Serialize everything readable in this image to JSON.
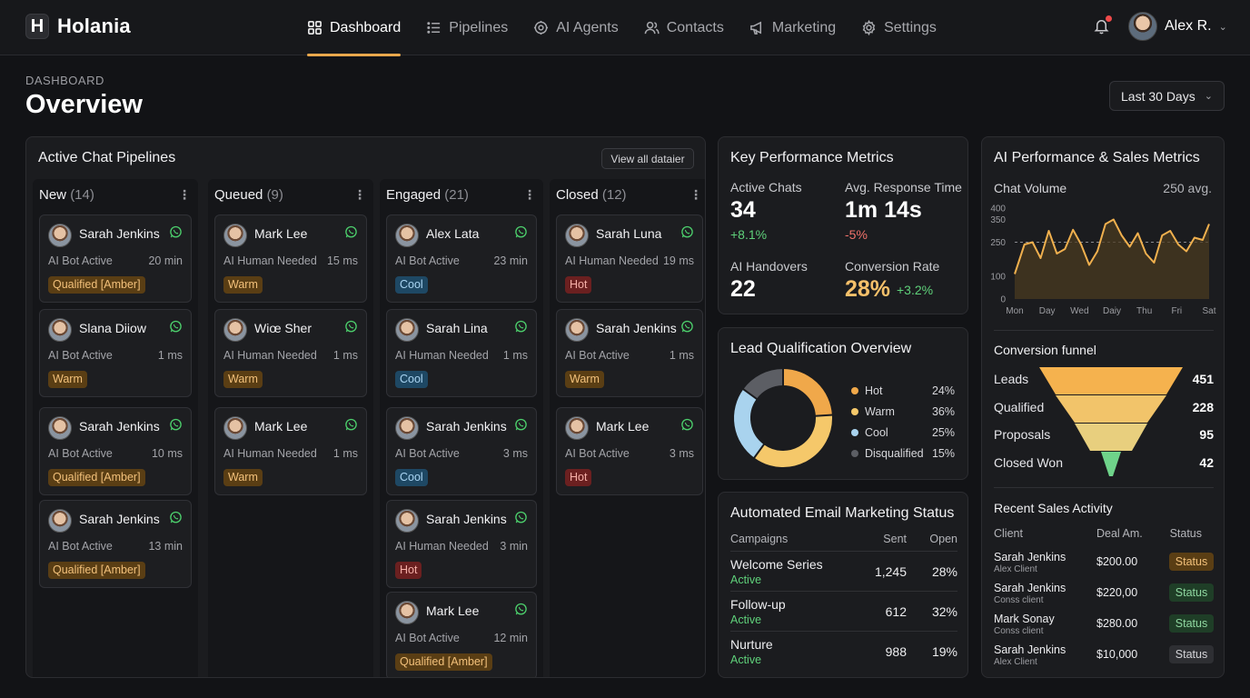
{
  "app": {
    "name": "Holania",
    "logo_letter": "H"
  },
  "nav": [
    {
      "label": "Dashboard",
      "icon": "grid-icon",
      "active": true
    },
    {
      "label": "Pipelines",
      "icon": "list-icon"
    },
    {
      "label": "AI Agents",
      "icon": "bot-icon"
    },
    {
      "label": "Contacts",
      "icon": "users-icon"
    },
    {
      "label": "Marketing",
      "icon": "megaphone-icon"
    },
    {
      "label": "Settings",
      "icon": "gear-icon"
    }
  ],
  "user": {
    "name": "Alex R."
  },
  "page": {
    "breadcrumb": "DASHBOARD",
    "title": "Overview",
    "range": "Last 30 Days"
  },
  "pipelines": {
    "title": "Active Chat Pipelines",
    "view_all": "View all dataier",
    "columns": [
      {
        "name": "New",
        "count": "(14)",
        "cards": [
          {
            "name": "Sarah Jenkins",
            "status": "AI  Bot Active",
            "time": "20 min",
            "tag": "Qualified [Amber]",
            "tag_type": "amber"
          },
          {
            "name": "Slana Diiow",
            "status": "AI  Bot Active",
            "time": "1 ms",
            "tag": "Warm",
            "tag_type": "amber"
          },
          {
            "name": "Sarah Jenkins",
            "status": "AI  Bot Active",
            "time": "10 ms",
            "tag": "Qualified [Amber]",
            "tag_type": "amber"
          },
          {
            "name": "Sarah Jenkins",
            "status": "AI  Bot Active",
            "time": "13 min",
            "tag": "Qualified [Amber]",
            "tag_type": "amber"
          }
        ]
      },
      {
        "name": "Queued",
        "count": "(9)",
        "cards": [
          {
            "name": "Mark Lee",
            "status": "AI  Human Needed",
            "time": "15 ms",
            "tag": "Warm",
            "tag_type": "amber"
          },
          {
            "name": "Wiœ Sher",
            "status": "AI  Human Needed",
            "time": "1 ms",
            "tag": "Warm",
            "tag_type": "amber"
          },
          {
            "name": "Mark Lee",
            "status": "AI  Human Needed",
            "time": "1 ms",
            "tag": "Warm",
            "tag_type": "amber"
          }
        ]
      },
      {
        "name": "Engaged",
        "count": "(21)",
        "cards": [
          {
            "name": "Alex Lata",
            "status": "AI  Bot Active",
            "time": "23 min",
            "tag": "Cool",
            "tag_type": "cool"
          },
          {
            "name": "Sarah Lina",
            "status": "AI  Human Needed",
            "time": "1 ms",
            "tag": "Cool",
            "tag_type": "cool"
          },
          {
            "name": "Sarah Jenkins",
            "status": "AI  Bot Active",
            "time": "3 ms",
            "tag": "Cool",
            "tag_type": "cool"
          },
          {
            "name": "Sarah Jenkins",
            "status": "AI  Human Needed",
            "time": "3 min",
            "tag": "Hot",
            "tag_type": "hot"
          },
          {
            "name": "Mark Lee",
            "status": "AI  Bot Active",
            "time": "12 min",
            "tag": "Qualified [Amber]",
            "tag_type": "amber"
          }
        ]
      },
      {
        "name": "Closed",
        "count": "(12)",
        "cards": [
          {
            "name": "Sarah Luna",
            "status": "AI  Human Needed",
            "time": "19 ms",
            "tag": "Hot",
            "tag_type": "hot"
          },
          {
            "name": "Sarah Jenkins",
            "status": "AI  Bot Active",
            "time": "1 ms",
            "tag": "Warm",
            "tag_type": "amber"
          },
          {
            "name": "Mark Lee",
            "status": "AI  Bot Active",
            "time": "3 ms",
            "tag": "Hot",
            "tag_type": "hot"
          }
        ]
      }
    ]
  },
  "kpi": {
    "title": "Key Performance Metrics",
    "active_chats": {
      "label": "Active Chats",
      "value": "34",
      "delta": "+8.1%"
    },
    "response": {
      "label": "Avg. Response Time",
      "value": "1m 14s",
      "delta": "-5%"
    },
    "handovers": {
      "label": "AI Handovers",
      "value": "22"
    },
    "conversion": {
      "label": "Conversion Rate",
      "value": "28%",
      "delta": "+3.2%"
    }
  },
  "lead": {
    "title": "Lead Qualification Overview",
    "items": [
      {
        "label": "Hot",
        "pct": "24%",
        "value": 24,
        "color": "#f0a84a"
      },
      {
        "label": "Warm",
        "pct": "36%",
        "value": 36,
        "color": "#f5c86a"
      },
      {
        "label": "Cool",
        "pct": "25%",
        "value": 25,
        "color": "#a9d3ee"
      },
      {
        "label": "Disqualified",
        "pct": "15%",
        "value": 15,
        "color": "#5c5e64"
      }
    ]
  },
  "email": {
    "title": "Automated Email Marketing Status",
    "headers": {
      "campaigns": "Campaigns",
      "sent": "Sent",
      "open": "Open"
    },
    "rows": [
      {
        "name": "Welcome Series",
        "status": "Active",
        "sent": "1,245",
        "open": "28%"
      },
      {
        "name": "Follow-up",
        "status": "Active",
        "sent": "612",
        "open": "32%"
      },
      {
        "name": "Nurture",
        "status": "Active",
        "sent": "988",
        "open": "19%"
      }
    ]
  },
  "ai": {
    "title": "AI Performance & Sales Metrics",
    "chat_volume_label": "Chat Volume",
    "chat_volume_avg": "250 avg."
  },
  "chart_data": {
    "type": "area",
    "title": "Chat Volume",
    "categories": [
      "Mon",
      "Day",
      "Wed",
      "Daiy",
      "Thu",
      "Fri",
      "Sat"
    ],
    "x": [
      0,
      0.3,
      0.55,
      0.8,
      1.05,
      1.3,
      1.55,
      1.8,
      2.05,
      2.3,
      2.55,
      2.8,
      3.05,
      3.3,
      3.55,
      3.8,
      4.05,
      4.3,
      4.55,
      4.8,
      5.05,
      5.3,
      5.55,
      5.8,
      6.0
    ],
    "series": [
      {
        "values": [
          110,
          240,
          250,
          180,
          300,
          200,
          220,
          305,
          240,
          150,
          210,
          330,
          350,
          280,
          230,
          290,
          200,
          160,
          280,
          300,
          240,
          210,
          270,
          260,
          330
        ]
      }
    ],
    "yticks": [
      0,
      100,
      250,
      350,
      400
    ],
    "ylim": [
      0,
      400
    ],
    "avg_line": 250
  },
  "funnel": {
    "title": "Conversion funnel",
    "stages": [
      {
        "label": "Leads",
        "value": "451",
        "color": "#f5b24e"
      },
      {
        "label": "Qualified",
        "value": "228",
        "color": "#f2c46a"
      },
      {
        "label": "Proposals",
        "value": "95",
        "color": "#e8cf7e"
      },
      {
        "label": "Closed Won",
        "value": "42",
        "color": "#6fd38a"
      }
    ]
  },
  "sales": {
    "title": "Recent Sales Activity",
    "headers": {
      "client": "Client",
      "amount": "Deal Am.",
      "status": "Status"
    },
    "rows": [
      {
        "name": "Sarah Jenkins",
        "sub": "Alex Client",
        "amount": "$200.00",
        "status": "Status",
        "type": "amber"
      },
      {
        "name": "Sarah Jenkins",
        "sub": "Conss client",
        "amount": "$220,00",
        "status": "Status",
        "type": "green"
      },
      {
        "name": "Mark Sonay",
        "sub": "Conss client",
        "amount": "$280.00",
        "status": "Status",
        "type": "green"
      },
      {
        "name": "Sarah Jenkins",
        "sub": "Alex Client",
        "amount": "$10,000",
        "status": "Status",
        "type": "gray"
      }
    ]
  }
}
